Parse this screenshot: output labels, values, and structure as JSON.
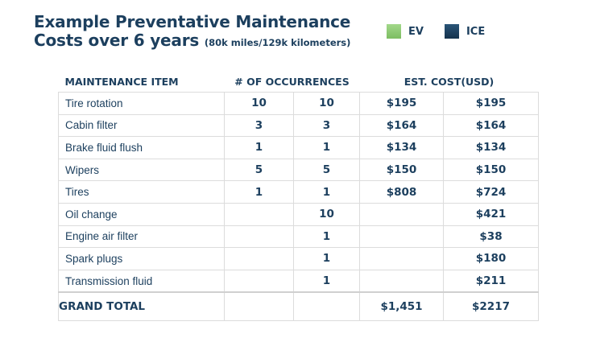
{
  "title": {
    "line1": "Example Preventative Maintenance",
    "line2": "Costs over 6 years",
    "subtitle": "(80k miles/129k kilometers)"
  },
  "legend": [
    {
      "label": "EV",
      "color": "#8cc870"
    },
    {
      "label": "ICE",
      "color": "#1c3f5e"
    }
  ],
  "headers": {
    "item": "MAINTENANCE ITEM",
    "occurrences": "# OF OCCURRENCES",
    "cost": "EST. COST(USD)"
  },
  "rows": [
    {
      "item": "Tire rotation",
      "ev_occ": "10",
      "ice_occ": "10",
      "ev_cost": "$195",
      "ice_cost": "$195"
    },
    {
      "item": "Cabin filter",
      "ev_occ": "3",
      "ice_occ": "3",
      "ev_cost": "$164",
      "ice_cost": "$164"
    },
    {
      "item": "Brake fluid flush",
      "ev_occ": "1",
      "ice_occ": "1",
      "ev_cost": "$134",
      "ice_cost": "$134"
    },
    {
      "item": "Wipers",
      "ev_occ": "5",
      "ice_occ": "5",
      "ev_cost": "$150",
      "ice_cost": "$150"
    },
    {
      "item": "Tires",
      "ev_occ": "1",
      "ice_occ": "1",
      "ev_cost": "$808",
      "ice_cost": "$724"
    },
    {
      "item": "Oil change",
      "ev_occ": "",
      "ice_occ": "10",
      "ev_cost": "",
      "ice_cost": "$421"
    },
    {
      "item": "Engine air filter",
      "ev_occ": "",
      "ice_occ": "1",
      "ev_cost": "",
      "ice_cost": "$38"
    },
    {
      "item": "Spark plugs",
      "ev_occ": "",
      "ice_occ": "1",
      "ev_cost": "",
      "ice_cost": "$180"
    },
    {
      "item": "Transmission fluid",
      "ev_occ": "",
      "ice_occ": "1",
      "ev_cost": "",
      "ice_cost": "$211"
    }
  ],
  "total": {
    "label": "GRAND TOTAL",
    "ev_occ": "",
    "ice_occ": "",
    "ev_cost": "$1,451",
    "ice_cost": "$2217"
  },
  "chart_data": {
    "type": "table",
    "title": "Example Preventative Maintenance Costs over 6 years",
    "subtitle": "(80k miles/129k kilometers)",
    "columns": [
      "MAINTENANCE ITEM",
      "# OF OCCURRENCES",
      "EST. COST(USD)"
    ],
    "series": [
      {
        "name": "EV",
        "color": "#8cc870",
        "occurrences": [
          10,
          3,
          1,
          5,
          1,
          null,
          null,
          null,
          null
        ],
        "costs": [
          195,
          164,
          134,
          150,
          808,
          null,
          null,
          null,
          null
        ],
        "total_cost": 1451
      },
      {
        "name": "ICE",
        "color": "#1c3f5e",
        "occurrences": [
          10,
          3,
          1,
          5,
          1,
          10,
          1,
          1,
          1
        ],
        "costs": [
          195,
          164,
          134,
          150,
          724,
          421,
          38,
          180,
          211
        ],
        "total_cost": 2217
      }
    ],
    "categories": [
      "Tire rotation",
      "Cabin filter",
      "Brake fluid flush",
      "Wipers",
      "Tires",
      "Oil change",
      "Engine air filter",
      "Spark plugs",
      "Transmission fluid"
    ]
  }
}
